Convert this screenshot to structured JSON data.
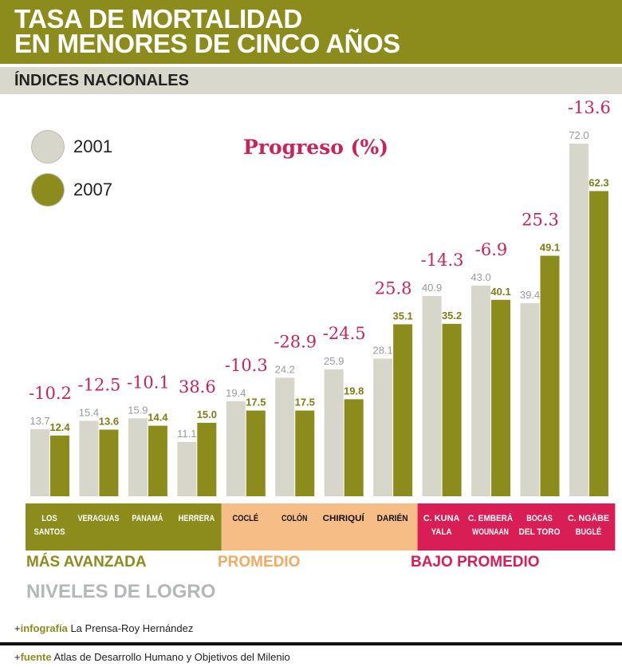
{
  "header": {
    "title_line1": "TASA DE MORTALIDAD",
    "title_line2": "EN MENORES DE CINCO AÑOS",
    "subtitle": "ÍNDICES NACIONALES"
  },
  "chart_data": {
    "type": "bar",
    "title": "TASA DE MORTALIDAD EN MENORES DE CINCO AÑOS",
    "subtitle": "ÍNDICES NACIONALES",
    "categories": [
      "LOS SANTOS",
      "VERAGUAS",
      "PANAMÁ",
      "HERRERA",
      "COCLÉ",
      "COLÓN",
      "CHIRIQUÍ",
      "DARIÉN",
      "C. KUNA YALA",
      "C. EMBERÁ WOUNAAN",
      "BOCAS DEL TORO",
      "C. NGÄBE BUGLÉ"
    ],
    "series": [
      {
        "name": "2001",
        "color": "#d7d6cb",
        "values": [
          13.7,
          15.4,
          15.9,
          11.1,
          19.4,
          24.2,
          25.9,
          28.1,
          40.9,
          43.0,
          39.4,
          72.0
        ]
      },
      {
        "name": "2007",
        "color": "#8b8c1c",
        "values": [
          12.4,
          13.6,
          14.4,
          15.0,
          17.5,
          17.5,
          19.8,
          35.1,
          35.2,
          40.1,
          49.1,
          62.3
        ]
      }
    ],
    "progress_label": "Progreso (%)",
    "progress": [
      -10.2,
      -12.5,
      -10.1,
      38.6,
      -10.3,
      -28.9,
      -24.5,
      25.8,
      -14.3,
      -6.9,
      25.3,
      -13.6
    ],
    "levels": [
      {
        "label": "MÁS AVANZADA",
        "color": "#8b8c1c",
        "count": 4
      },
      {
        "label": "PROMEDIO",
        "color": "#f7bd86",
        "text_color": "#f5a860",
        "count": 4
      },
      {
        "label": "BAJO PROMEDIO",
        "color": "#d81e55",
        "count": 4
      }
    ],
    "levels_title": "NIVELES DE LOGRO",
    "legend_placement": "top-left",
    "grid": false
  },
  "footer": {
    "infografia_label": "infografía",
    "infografia": "La Prensa-Roy Hernández",
    "fuente_label": "fuente",
    "fuente": "Atlas de Desarrollo Humano y Objetivos del Milenio",
    "plus": "+"
  }
}
